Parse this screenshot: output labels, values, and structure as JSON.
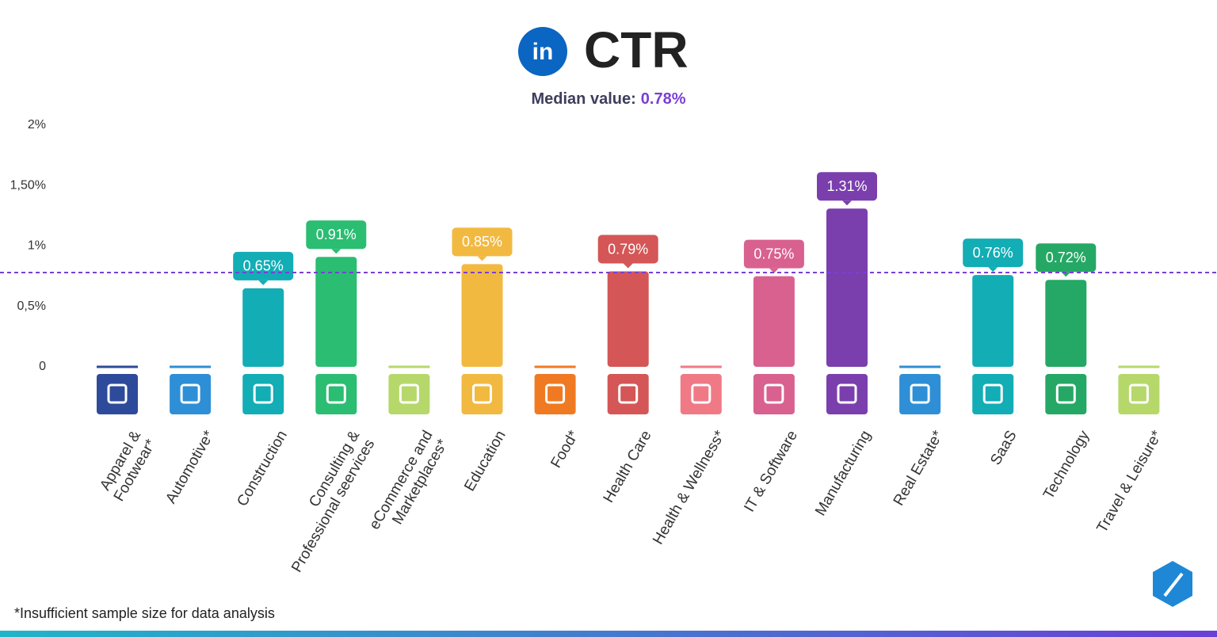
{
  "chart_data": {
    "type": "bar",
    "logo_text": "in",
    "title": "CTR",
    "median": {
      "label": "Median value:",
      "value": 0.78,
      "value_label": "0.78%",
      "color": "#7a3fd6"
    },
    "categories": [
      "Apparel & Footwear*",
      "Automotive*",
      "Construction",
      "Consulting &\nProfessional seervices",
      "eCommerce and\nMarketplaces*",
      "Education",
      "Food*",
      "Health Care",
      "Health & Wellness*",
      "IT & Software",
      "Manufacturing",
      "Real Estate*",
      "SaaS",
      "Technology",
      "Travel & Leisure*"
    ],
    "values": [
      null,
      null,
      0.65,
      0.91,
      null,
      0.85,
      null,
      0.79,
      null,
      0.75,
      1.31,
      null,
      0.76,
      0.72,
      null
    ],
    "value_labels": [
      null,
      null,
      "0.65%",
      "0.91%",
      null,
      "0.85%",
      null,
      "0.79%",
      null,
      "0.75%",
      "1.31%",
      null,
      "0.76%",
      "0.72%",
      null
    ],
    "colors": [
      "#2e4a9a",
      "#2e8fd6",
      "#12adb5",
      "#2bbd72",
      "#b6d86b",
      "#f2b941",
      "#f07a22",
      "#d45656",
      "#ef7a86",
      "#d8618f",
      "#7a3fad",
      "#2e8fd6",
      "#12adb5",
      "#25a865",
      "#b6d86b"
    ],
    "ylim": [
      0,
      2
    ],
    "yticks": [
      {
        "value": 0,
        "label": "0"
      },
      {
        "value": 0.5,
        "label": "0,5%"
      },
      {
        "value": 1,
        "label": "1%"
      },
      {
        "value": 1.5,
        "label": "1,50%"
      },
      {
        "value": 2,
        "label": "2%"
      }
    ],
    "grid": false,
    "footnote": "*Insufficient sample size for data analysis"
  }
}
